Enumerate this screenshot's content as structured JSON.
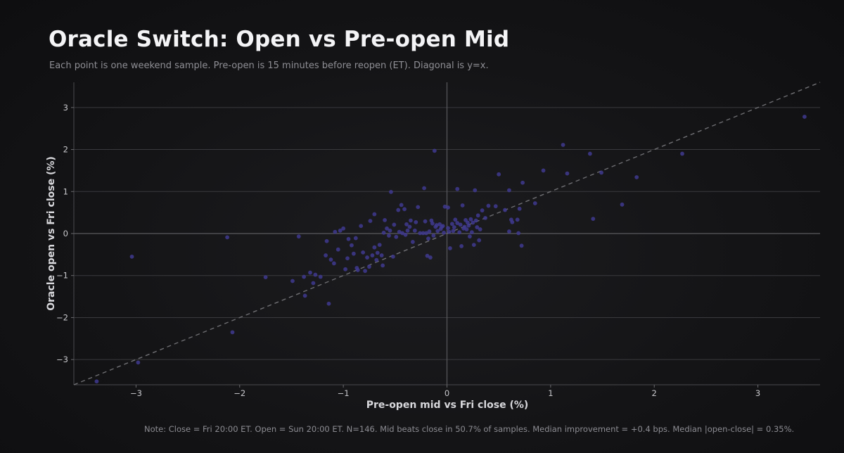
{
  "title": "Oracle Switch: Open vs Pre-open Mid",
  "subtitle": "Each point is one weekend sample. Pre-open is 15 minutes before reopen (ET). Diagonal is y=x.",
  "note": "Note: Close = Fri 20:00 ET. Open = Sun 20:00 ET. N=146. Mid beats close in 50.7% of samples. Median improvement = +0.4 bps. Median |open-close| = 0.35%.",
  "colors": {
    "point": "#3f3a8f",
    "diagonal": "#6e6e72",
    "grid": "#3a3a3e",
    "zero_line": "#5a5a5e"
  },
  "chart_data": {
    "type": "scatter",
    "title": "Oracle Switch: Open vs Pre-open Mid",
    "xlabel": "Pre-open mid vs Fri close (%)",
    "ylabel": "Oracle open vs Fri close (%)",
    "xlim": [
      -3.6,
      3.6
    ],
    "ylim": [
      -3.6,
      3.6
    ],
    "xticks": [
      -3,
      -2,
      -1,
      0,
      1,
      2,
      3
    ],
    "yticks": [
      -3,
      -2,
      -1,
      0,
      1,
      2,
      3
    ],
    "xtick_labels": [
      "−3",
      "−2",
      "−1",
      "0",
      "1",
      "2",
      "3"
    ],
    "ytick_labels": [
      "−3",
      "−2",
      "−1",
      "0",
      "1",
      "2",
      "3"
    ],
    "grid": "horizontal",
    "diagonal": "y=x",
    "points": [
      [
        -3.38,
        -3.52
      ],
      [
        -2.98,
        -3.07
      ],
      [
        -3.04,
        -0.55
      ],
      [
        -2.12,
        -0.09
      ],
      [
        -2.07,
        -2.35
      ],
      [
        -1.75,
        -1.04
      ],
      [
        -1.49,
        -1.13
      ],
      [
        -1.43,
        -0.07
      ],
      [
        -1.38,
        -1.03
      ],
      [
        -1.37,
        -1.48
      ],
      [
        -1.32,
        -0.93
      ],
      [
        -1.29,
        -1.18
      ],
      [
        -1.27,
        -0.98
      ],
      [
        -1.22,
        -1.03
      ],
      [
        -1.17,
        -0.52
      ],
      [
        -1.16,
        -0.18
      ],
      [
        -1.14,
        -1.67
      ],
      [
        -1.12,
        -0.62
      ],
      [
        -1.09,
        -0.71
      ],
      [
        -1.08,
        0.04
      ],
      [
        -1.05,
        -0.38
      ],
      [
        -1.03,
        0.07
      ],
      [
        -1.0,
        0.12
      ],
      [
        -0.98,
        -0.85
      ],
      [
        -0.96,
        -0.59
      ],
      [
        -0.95,
        -0.13
      ],
      [
        -0.92,
        -0.28
      ],
      [
        -0.9,
        -0.48
      ],
      [
        -0.88,
        -0.11
      ],
      [
        -0.87,
        -0.82
      ],
      [
        -0.86,
        -0.87
      ],
      [
        -0.83,
        0.18
      ],
      [
        -0.81,
        -0.45
      ],
      [
        -0.79,
        -0.89
      ],
      [
        -0.77,
        -0.57
      ],
      [
        -0.75,
        -0.79
      ],
      [
        -0.74,
        0.3
      ],
      [
        -0.72,
        -0.52
      ],
      [
        -0.7,
        -0.33
      ],
      [
        -0.68,
        -0.63
      ],
      [
        -0.67,
        -0.46
      ],
      [
        -0.65,
        -0.27
      ],
      [
        -0.63,
        -0.52
      ],
      [
        -0.62,
        -0.76
      ],
      [
        -0.7,
        0.46
      ],
      [
        -0.61,
        0.02
      ],
      [
        -0.6,
        0.32
      ],
      [
        -0.58,
        0.12
      ],
      [
        -0.56,
        -0.05
      ],
      [
        -0.55,
        0.07
      ],
      [
        -0.54,
        0.99
      ],
      [
        -0.52,
        -0.55
      ],
      [
        -0.51,
        0.21
      ],
      [
        -0.49,
        -0.08
      ],
      [
        -0.47,
        0.56
      ],
      [
        -0.46,
        0.04
      ],
      [
        -0.44,
        0.68
      ],
      [
        -0.43,
        0.01
      ],
      [
        -0.41,
        0.58
      ],
      [
        -0.4,
        -0.03
      ],
      [
        -0.39,
        0.22
      ],
      [
        -0.38,
        0.07
      ],
      [
        -0.36,
        0.16
      ],
      [
        -0.35,
        0.31
      ],
      [
        -0.33,
        -0.2
      ],
      [
        -0.31,
        0.07
      ],
      [
        -0.3,
        0.27
      ],
      [
        -0.28,
        0.63
      ],
      [
        -0.26,
        0.01
      ],
      [
        -0.23,
        0.01
      ],
      [
        -0.22,
        1.08
      ],
      [
        -0.21,
        0.29
      ],
      [
        -0.2,
        0.01
      ],
      [
        -0.19,
        -0.53
      ],
      [
        -0.18,
        -0.12
      ],
      [
        -0.17,
        0.05
      ],
      [
        -0.16,
        -0.57
      ],
      [
        -0.15,
        0.31
      ],
      [
        -0.14,
        0.24
      ],
      [
        -0.13,
        -0.05
      ],
      [
        -0.12,
        1.97
      ],
      [
        -0.11,
        0.16
      ],
      [
        -0.1,
        0.2
      ],
      [
        -0.09,
        0.06
      ],
      [
        -0.07,
        0.22
      ],
      [
        -0.06,
        0.11
      ],
      [
        -0.05,
        0.16
      ],
      [
        -0.04,
        0.18
      ],
      [
        -0.03,
        0.02
      ],
      [
        -0.02,
        0.64
      ],
      [
        0.01,
        0.62
      ],
      [
        0.01,
        0.13
      ],
      [
        0.02,
        0.04
      ],
      [
        0.03,
        -0.35
      ],
      [
        0.05,
        0.23
      ],
      [
        0.06,
        0.06
      ],
      [
        0.07,
        0.15
      ],
      [
        0.08,
        0.33
      ],
      [
        0.1,
        0.25
      ],
      [
        0.1,
        1.06
      ],
      [
        0.12,
        0.03
      ],
      [
        0.13,
        0.21
      ],
      [
        0.14,
        -0.3
      ],
      [
        0.15,
        0.67
      ],
      [
        0.16,
        0.12
      ],
      [
        0.17,
        0.16
      ],
      [
        0.18,
        0.32
      ],
      [
        0.19,
        0.1
      ],
      [
        0.2,
        0.26
      ],
      [
        0.21,
        0.19
      ],
      [
        0.22,
        -0.07
      ],
      [
        0.23,
        0.34
      ],
      [
        0.24,
        0.03
      ],
      [
        0.25,
        0.26
      ],
      [
        0.26,
        -0.27
      ],
      [
        0.27,
        1.03
      ],
      [
        0.28,
        0.31
      ],
      [
        0.29,
        0.15
      ],
      [
        0.3,
        0.43
      ],
      [
        0.31,
        -0.16
      ],
      [
        0.32,
        0.1
      ],
      [
        0.34,
        0.55
      ],
      [
        0.37,
        0.37
      ],
      [
        0.4,
        0.66
      ],
      [
        0.47,
        0.65
      ],
      [
        0.5,
        1.41
      ],
      [
        0.56,
        0.56
      ],
      [
        0.6,
        0.05
      ],
      [
        0.6,
        1.03
      ],
      [
        0.62,
        0.33
      ],
      [
        0.63,
        0.27
      ],
      [
        0.68,
        0.33
      ],
      [
        0.69,
        0.01
      ],
      [
        0.7,
        0.59
      ],
      [
        0.72,
        -0.29
      ],
      [
        0.73,
        1.21
      ],
      [
        0.85,
        0.72
      ],
      [
        0.93,
        1.5
      ],
      [
        1.12,
        2.11
      ],
      [
        1.16,
        1.43
      ],
      [
        1.38,
        1.9
      ],
      [
        1.41,
        0.35
      ],
      [
        1.49,
        1.45
      ],
      [
        1.69,
        0.69
      ],
      [
        1.83,
        1.34
      ],
      [
        2.27,
        1.9
      ],
      [
        3.45,
        2.78
      ]
    ]
  }
}
